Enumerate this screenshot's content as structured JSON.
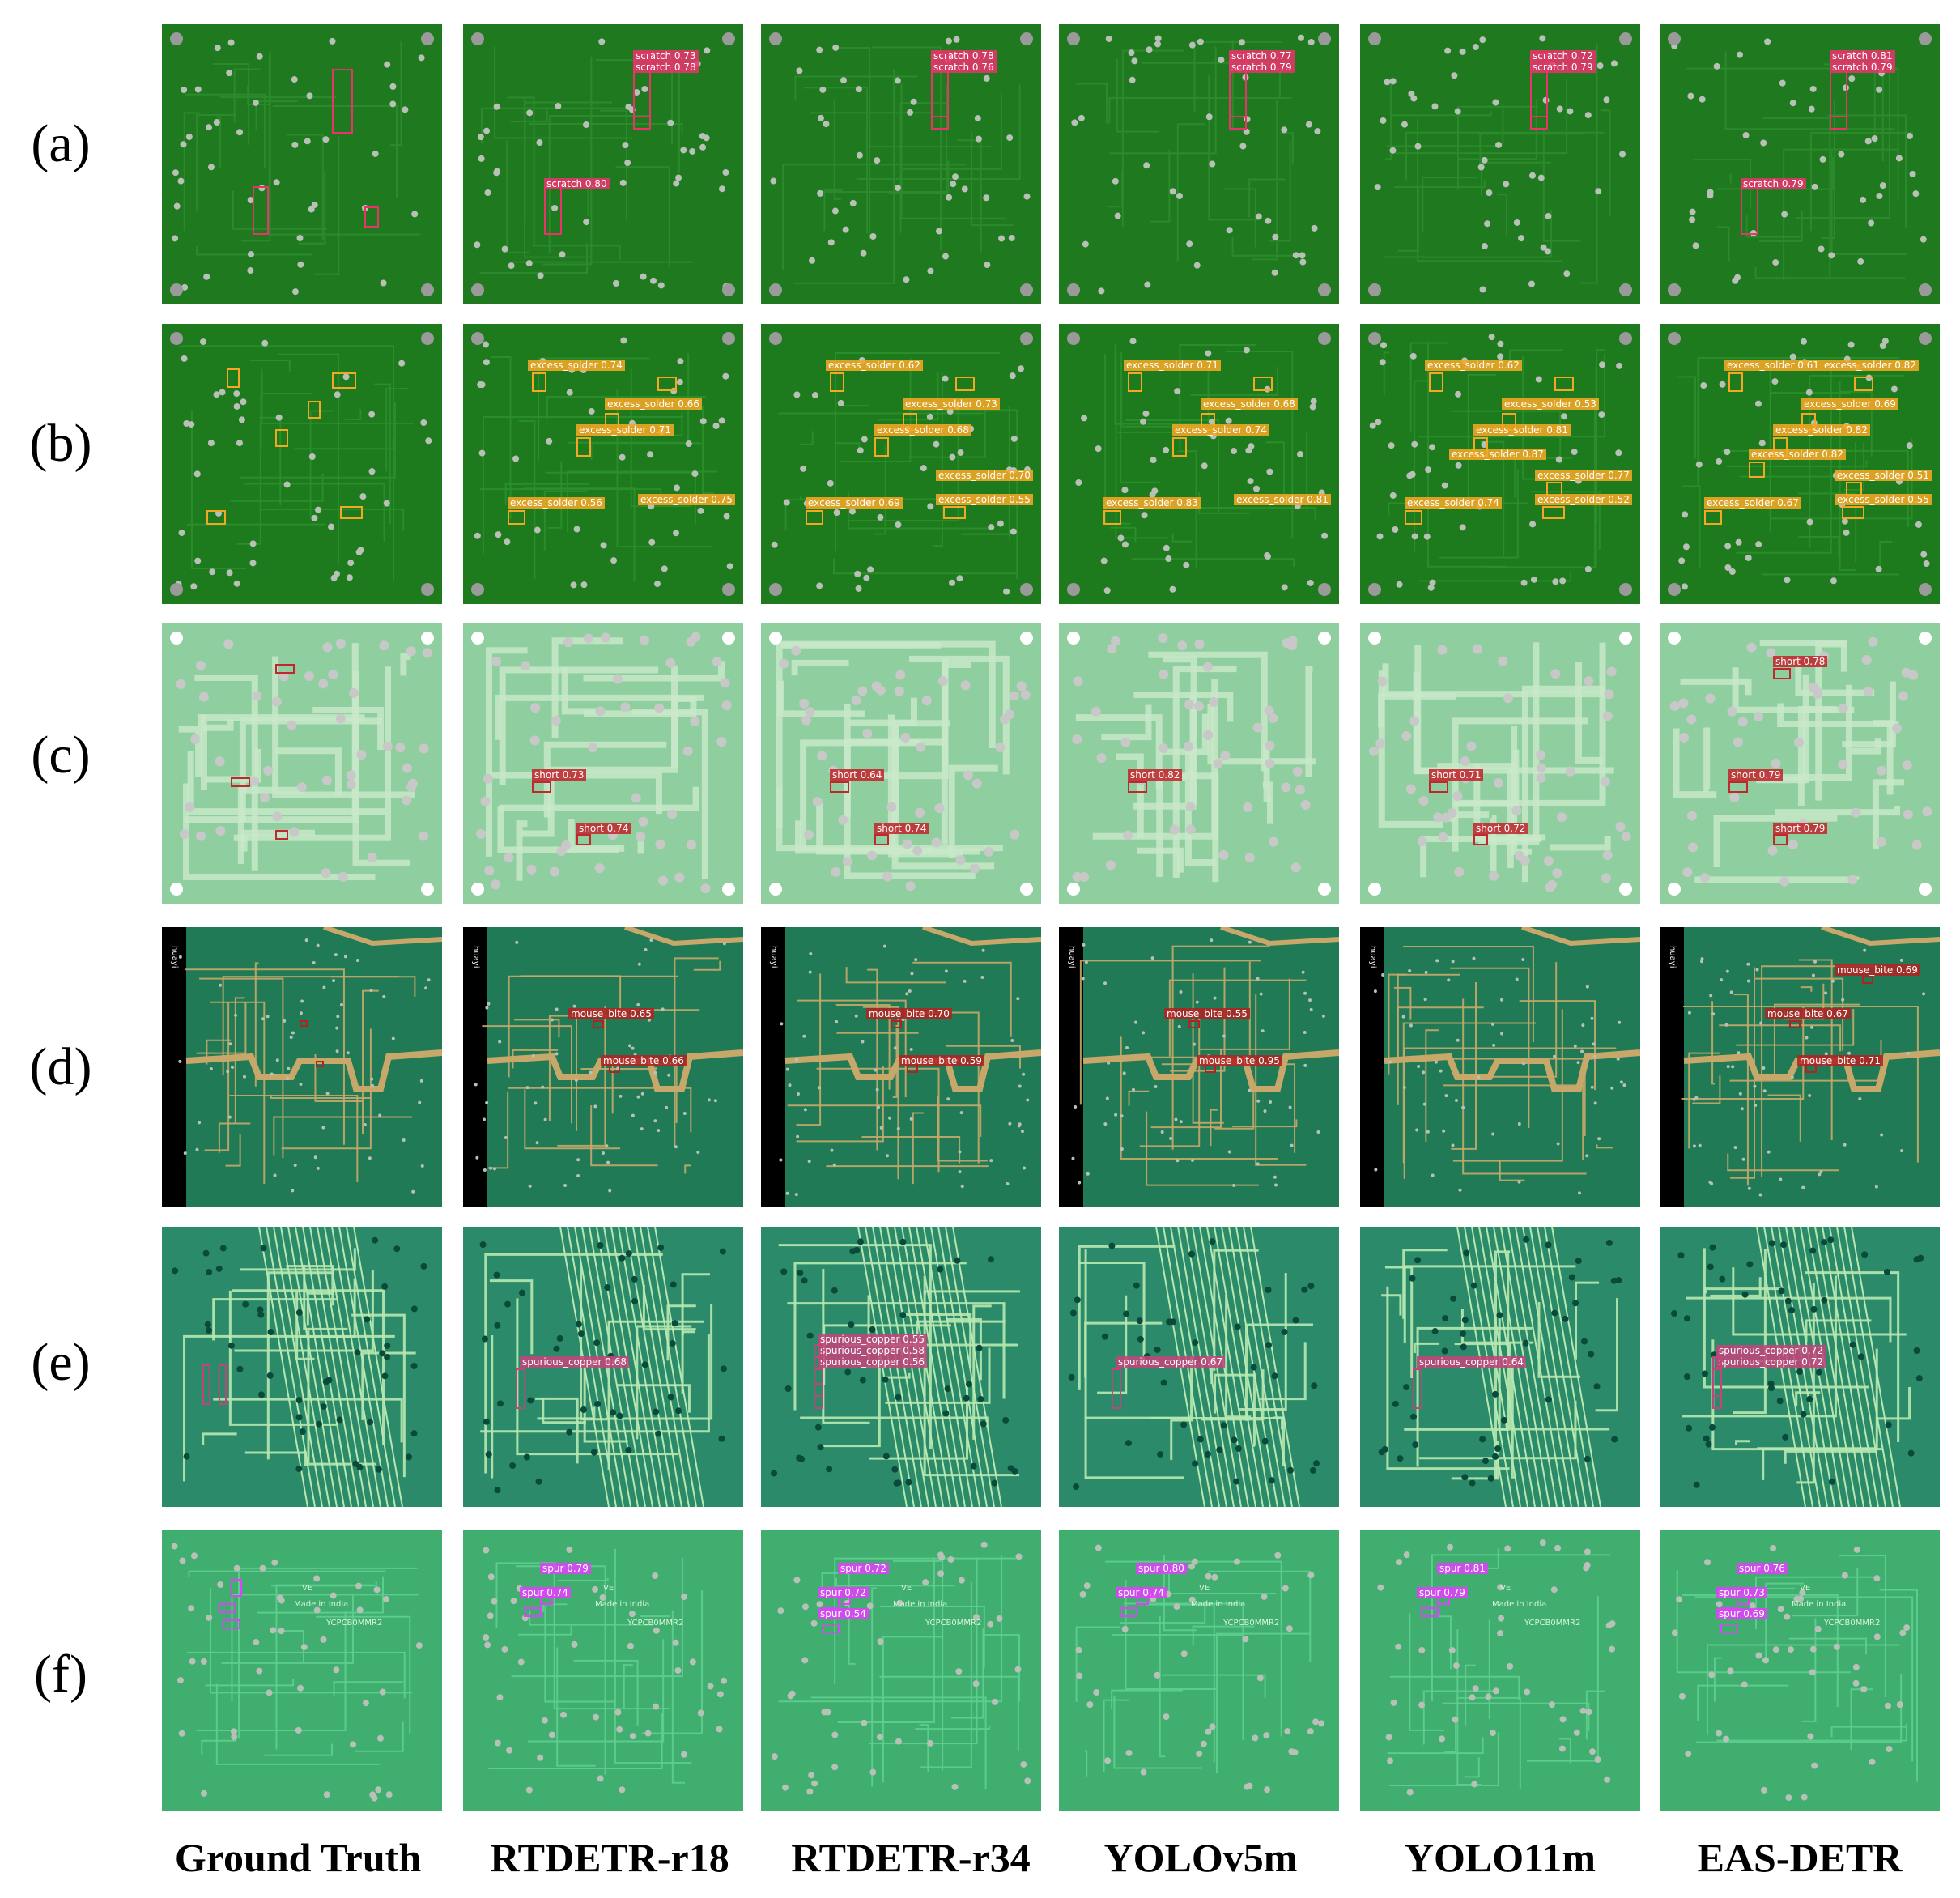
{
  "row_labels": [
    "(a)",
    "(b)",
    "(c)",
    "(d)",
    "(e)",
    "(f)"
  ],
  "column_labels": [
    "Ground Truth",
    "RTDETR-r18",
    "RTDETR-r34",
    "YOLOv5m",
    "YOLO11m",
    "EAS-DETR"
  ],
  "defect_colors": {
    "scratch": "#e8336b",
    "excess_solder": "#f5a623",
    "short": "#c0282d",
    "mouse_bite": "#b22222",
    "spurious_copper": "#c0457a",
    "spur": "#e040fb"
  },
  "board_styles": [
    {
      "row": "a",
      "board": "#1f7a1f",
      "trace": "#2e8b2e"
    },
    {
      "row": "b",
      "board": "#1d7a1d",
      "trace": "#2b8f2b"
    },
    {
      "row": "c",
      "board": "#8fcf9f",
      "trace": "#c9e8c9"
    },
    {
      "row": "d",
      "board": "#1f7a55",
      "trace": "#c8a86a"
    },
    {
      "row": "e",
      "board": "#2a8a6a",
      "trace": "#b8e8b0"
    },
    {
      "row": "f",
      "board": "#3fae6f",
      "trace": "#5fcf8f"
    }
  ],
  "detections": {
    "a": [
      [],
      [
        "scratch 0.73",
        "scratch 0.78",
        "scratch 0.80"
      ],
      [
        "scratch 0.78",
        "scratch 0.76"
      ],
      [
        "scratch 0.77",
        "scratch 0.79"
      ],
      [
        "scratch 0.72",
        "scratch 0.79"
      ],
      [
        "scratch 0.81",
        "scratch 0.79",
        "scratch 0.79"
      ]
    ],
    "b": [
      [],
      [
        "excess_solder 0.74",
        "excess_solder 0.66",
        "excess_solder 0.71",
        "excess_solder 0.56",
        "excess_solder 0.75"
      ],
      [
        "excess_solder 0.62",
        "excess_solder 0.73",
        "excess_solder 0.68",
        "excess_solder 0.69",
        "excess_solder 0.55",
        "excess_solder 0.70"
      ],
      [
        "excess_solder 0.71",
        "excess_solder 0.68",
        "excess_solder 0.74",
        "excess_solder 0.83",
        "excess_solder 0.81"
      ],
      [
        "excess_solder 0.62",
        "excess_solder 0.53",
        "excess_solder 0.81",
        "excess_solder 0.74",
        "excess_solder 0.52",
        "excess_solder 0.77",
        "excess_solder 0.87"
      ],
      [
        "excess_solder 0.61",
        "excess_solder 0.69",
        "excess_solder 0.82",
        "excess_solder 0.67",
        "excess_solder 0.55",
        "excess_solder 0.51",
        "excess_solder 0.82",
        "excess_solder 0.82"
      ]
    ],
    "c": [
      [],
      [
        "short 0.73",
        "short 0.74"
      ],
      [
        "short 0.64",
        "short 0.74"
      ],
      [
        "short 0.82"
      ],
      [
        "short 0.71",
        "short 0.72"
      ],
      [
        "short 0.79",
        "short 0.79",
        "short 0.78"
      ]
    ],
    "d": [
      [],
      [
        "mouse_bite 0.65",
        "mouse_bite 0.66"
      ],
      [
        "mouse_bite 0.70",
        "mouse_bite 0.59"
      ],
      [
        "mouse_bite 0.55",
        "mouse_bite 0.95"
      ],
      [],
      [
        "mouse_bite 0.67",
        "mouse_bite 0.71",
        "mouse_bite 0.69"
      ]
    ],
    "e": [
      [],
      [
        "spurious_copper 0.68"
      ],
      [
        "spurious_copper 0.56",
        "spurious_copper 0.58",
        "spurious_copper 0.55"
      ],
      [
        "spurious_copper 0.67"
      ],
      [
        "spurious_copper 0.64"
      ],
      [
        "spurious_copper 0.72",
        "spurious_copper 0.72"
      ]
    ],
    "f": [
      [],
      [
        "spur 0.79",
        "spur 0.74"
      ],
      [
        "spur 0.72",
        "spur 0.72",
        "spur 0.54"
      ],
      [
        "spur 0.80",
        "spur 0.74"
      ],
      [
        "spur 0.81",
        "spur 0.79"
      ],
      [
        "spur 0.76",
        "spur 0.73",
        "spur 0.69"
      ]
    ]
  },
  "board_print": {
    "f_marks": [
      "VE",
      "Made in India",
      "YCPCB0MMR2"
    ],
    "d_side_text": "huayi"
  }
}
